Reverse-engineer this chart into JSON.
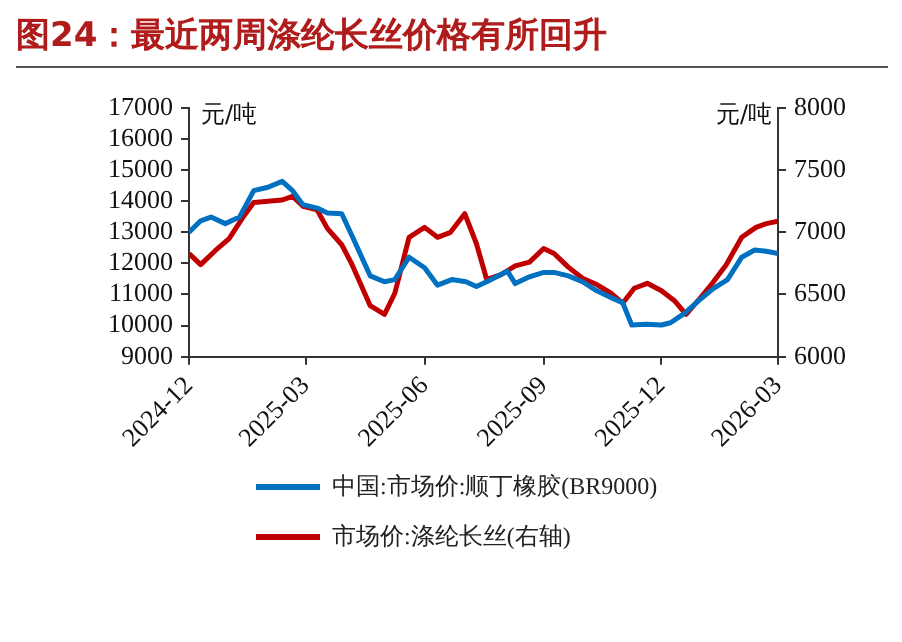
{
  "chart_data": {
    "type": "line",
    "title": "图24：最近两周涤纶长丝价格有所回升",
    "ylabel": "元/吨",
    "y2label": "元/吨",
    "xlim": [
      "2024-12",
      "2026-03"
    ],
    "xticks": [
      "2024-12",
      "2025-03",
      "2025-06",
      "2025-09",
      "2025-12",
      "2026-03"
    ],
    "ylim": [
      9000,
      17000
    ],
    "yticks": [
      9000,
      10000,
      11000,
      12000,
      13000,
      14000,
      15000,
      16000,
      17000
    ],
    "y2lim": [
      6000,
      8000
    ],
    "y2ticks": [
      6000,
      6500,
      7000,
      7500,
      8000
    ],
    "grid": false,
    "legend": "bottom",
    "marker": "none",
    "line_style": "solid",
    "series": [
      {
        "name": "中国:市场价:顺丁橡胶(BR9000)",
        "color": "#0070c0",
        "x": [
          "2024-12-01",
          "2024-12-10",
          "2024-12-18",
          "2024-12-29",
          "2025-01-09",
          "2025-01-20",
          "2025-01-31",
          "2025-02-11",
          "2025-02-19",
          "2025-02-27",
          "2025-03-10",
          "2025-03-18",
          "2025-03-29",
          "2025-04-06",
          "2025-04-20",
          "2025-05-01",
          "2025-05-09",
          "2025-05-20",
          "2025-06-01",
          "2025-06-11",
          "2025-06-22",
          "2025-07-03",
          "2025-07-11",
          "2025-07-19",
          "2025-07-30",
          "2025-08-04",
          "2025-08-10",
          "2025-08-21",
          "2025-09-01",
          "2025-09-09",
          "2025-09-20",
          "2025-10-01",
          "2025-10-12",
          "2025-10-23",
          "2025-11-01",
          "2025-11-08",
          "2025-11-19",
          "2025-12-01",
          "2025-12-08",
          "2025-12-19",
          "2025-12-30",
          "2026-01-10",
          "2026-01-21",
          "2026-02-01",
          "2026-02-11",
          "2026-02-20",
          "2026-03-01"
        ],
        "values": [
          13000,
          13370,
          13490,
          13280,
          13490,
          14340,
          14450,
          14640,
          14340,
          13890,
          13780,
          13620,
          13600,
          12880,
          11600,
          11410,
          11480,
          12200,
          11860,
          11300,
          11480,
          11410,
          11260,
          11410,
          11640,
          11750,
          11350,
          11570,
          11710,
          11710,
          11600,
          11410,
          11120,
          10900,
          10740,
          10020,
          10040,
          10020,
          10090,
          10400,
          10810,
          11190,
          11480,
          12200,
          12430,
          12390,
          12320
        ]
      },
      {
        "name": "市场价:涤纶长丝(右轴)",
        "color": "#c00000",
        "axis": "y2",
        "x": [
          "2024-12-01",
          "2024-12-10",
          "2024-12-21",
          "2025-01-01",
          "2025-01-11",
          "2025-01-20",
          "2025-01-31",
          "2025-02-11",
          "2025-02-19",
          "2025-02-27",
          "2025-03-10",
          "2025-03-18",
          "2025-03-29",
          "2025-04-06",
          "2025-04-20",
          "2025-05-01",
          "2025-05-09",
          "2025-05-20",
          "2025-06-01",
          "2025-06-11",
          "2025-06-21",
          "2025-07-02",
          "2025-07-11",
          "2025-07-19",
          "2025-07-30",
          "2025-08-10",
          "2025-08-21",
          "2025-09-01",
          "2025-09-09",
          "2025-09-20",
          "2025-10-01",
          "2025-10-12",
          "2025-10-23",
          "2025-11-01",
          "2025-11-10",
          "2025-11-20",
          "2025-12-01",
          "2025-12-11",
          "2025-12-20",
          "2025-12-30",
          "2026-01-10",
          "2026-01-20",
          "2026-02-01",
          "2026-02-12",
          "2026-02-20",
          "2026-03-01"
        ],
        "values": [
          6830,
          6740,
          6850,
          6950,
          7110,
          7240,
          7250,
          7260,
          7290,
          7210,
          7180,
          7030,
          6900,
          6740,
          6410,
          6340,
          6510,
          6960,
          7040,
          6960,
          7000,
          7150,
          6910,
          6620,
          6660,
          6730,
          6760,
          6870,
          6830,
          6720,
          6630,
          6580,
          6510,
          6430,
          6550,
          6590,
          6530,
          6450,
          6340,
          6460,
          6600,
          6740,
          6960,
          7040,
          7070,
          7090
        ]
      }
    ]
  }
}
